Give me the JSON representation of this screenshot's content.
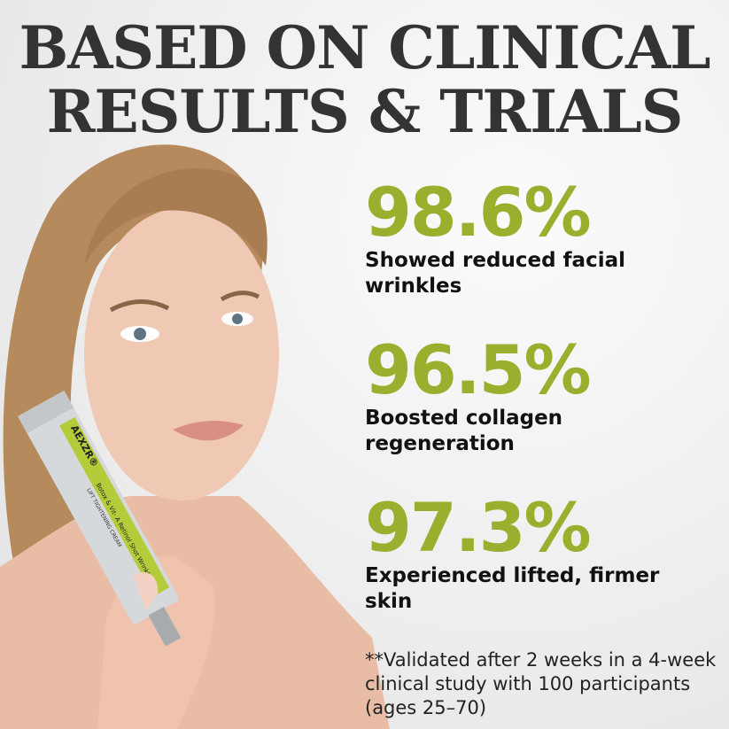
{
  "headline": {
    "line1": "BASED ON CLINICAL",
    "line2": "RESULTS & TRIALS"
  },
  "stats": [
    {
      "value": "98.6%",
      "label": "Showed reduced facial wrinkles"
    },
    {
      "value": "96.5%",
      "label": "Boosted collagen regeneration"
    },
    {
      "value": "97.3%",
      "label": "Experienced lifted, firmer skin"
    }
  ],
  "footnote": "**Validated after 2 weeks in a 4-week clinical study with 100 participants (ages 25–70)",
  "product": {
    "brand": "AEXZR®",
    "line1": "Botox & Vit- A Retinol Shot Wrinkle",
    "line2": "LIFT TIGHTENING CREAM"
  },
  "colors": {
    "accent": "#9cae2e",
    "headline": "#333333",
    "tube_label": "#b5cc3a"
  }
}
